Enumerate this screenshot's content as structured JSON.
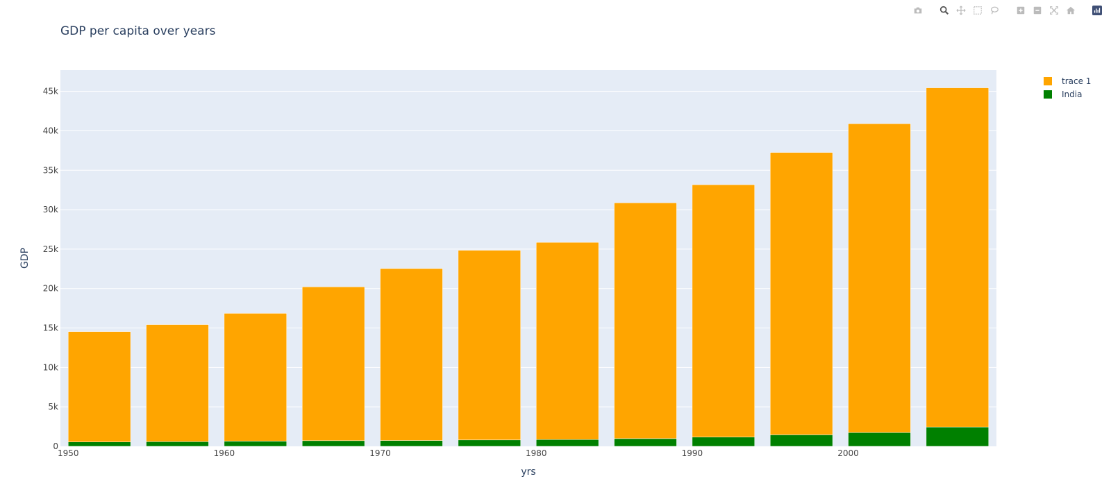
{
  "chart_data": {
    "type": "bar",
    "barmode": "stack",
    "title": "GDP per capita over years",
    "xlabel": "yrs",
    "ylabel": "GDP",
    "x": [
      1952,
      1957,
      1962,
      1967,
      1972,
      1977,
      1982,
      1987,
      1992,
      1997,
      2002,
      2007
    ],
    "xticks": [
      1950,
      1960,
      1970,
      1980,
      1990,
      2000
    ],
    "xtick_labels": [
      "1950",
      "1960",
      "1970",
      "1980",
      "1990",
      "2000"
    ],
    "xlim": [
      1949.5,
      2009.5
    ],
    "ylim": [
      0,
      47700
    ],
    "yticks": [
      0,
      5000,
      10000,
      15000,
      20000,
      25000,
      30000,
      35000,
      40000,
      45000
    ],
    "ytick_labels": [
      "0",
      "5k",
      "10k",
      "15k",
      "20k",
      "25k",
      "30k",
      "35k",
      "40k",
      "45k"
    ],
    "grid": true,
    "legend_position": "top-right",
    "series": [
      {
        "name": "India",
        "color": "#008000",
        "values": [
          550,
          590,
          660,
          720,
          740,
          810,
          860,
          980,
          1170,
          1460,
          1750,
          2450
        ]
      },
      {
        "name": "trace 1",
        "color": "#FFA500",
        "values": [
          14000,
          14850,
          16200,
          19500,
          21800,
          24050,
          25000,
          29900,
          32000,
          35800,
          39150,
          43000
        ]
      }
    ],
    "legend_order": [
      "trace 1",
      "India"
    ]
  },
  "modebar": {
    "buttons": [
      "camera-icon",
      "zoom-icon",
      "pan-icon",
      "box-select-icon",
      "lasso-select-icon",
      "zoom-in-icon",
      "zoom-out-icon",
      "autoscale-icon",
      "reset-axes-icon",
      "plotly-logo-icon"
    ]
  },
  "colors": {
    "plot_bg": "#E5ECF6",
    "grid": "#ffffff",
    "text": "#2a3f5f",
    "tick_text": "#444444"
  }
}
